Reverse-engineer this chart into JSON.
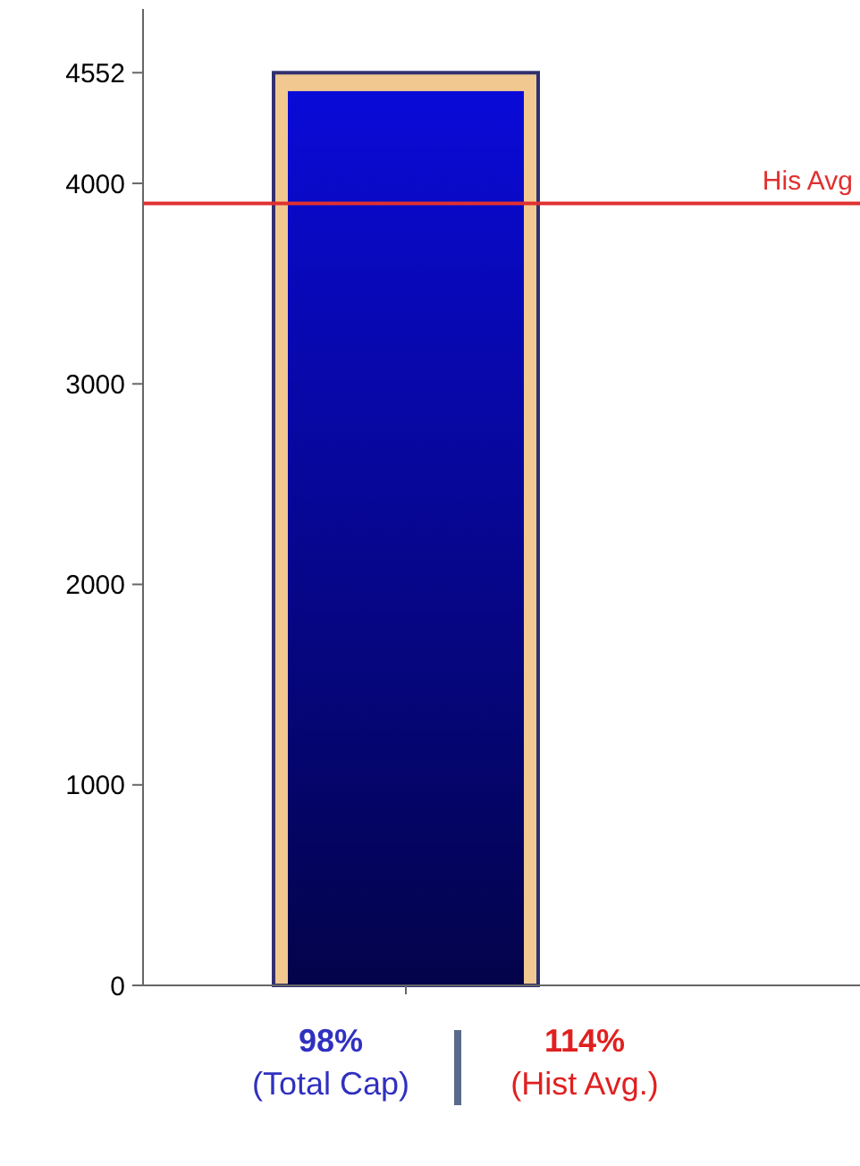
{
  "chart_data": {
    "type": "bar",
    "categories": [
      null
    ],
    "series": [
      {
        "color": "#f0c890",
        "values": [
          4552
        ]
      },
      {
        "color": "#0a0ad8",
        "values": [
          4460
        ]
      }
    ],
    "ylim": [
      0,
      4870
    ],
    "yticks": [
      0,
      1000,
      2000,
      3000,
      4000,
      4552
    ],
    "ref_lines": [
      {
        "axis": "y",
        "value": 3900,
        "label": "His Avg",
        "color": "#e03030"
      }
    ],
    "annotations": [
      "98%",
      "(Total Cap)",
      "114%",
      "(Hist Avg.)"
    ]
  }
}
